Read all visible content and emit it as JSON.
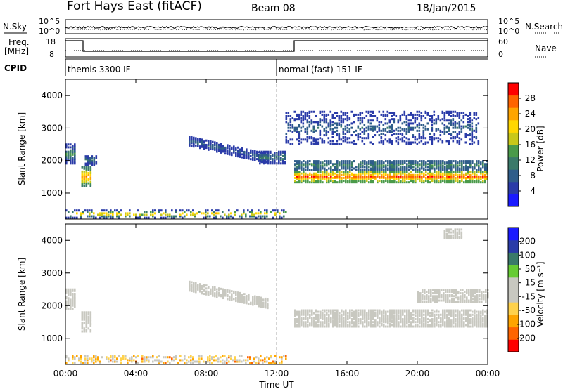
{
  "header": {
    "station": "Fort Hays East (fitACF)",
    "beam": "Beam 08",
    "date": "18/Jan/2015"
  },
  "left_labels": {
    "nsky": "N.Sky",
    "freq_line1": "Freq.",
    "freq_line2": "[MHz]",
    "cpid": "CPID"
  },
  "right_labels": {
    "nsearch": "N.Search",
    "nave": "Nave"
  },
  "noise_axis": {
    "left_ticks": [
      "10^5",
      "10^0"
    ],
    "right_ticks": [
      "10^5",
      "10^0"
    ]
  },
  "freq_axis": {
    "left_ticks": [
      "18",
      "8"
    ],
    "right_ticks": [
      "60",
      "0"
    ]
  },
  "cpid_modes": [
    {
      "label": "themis 3300 IF",
      "start": 0.0
    },
    {
      "label": "normal (fast) 151 IF",
      "start": 12.0
    }
  ],
  "colors": {
    "power_scale": [
      "#1a1aff",
      "#2a3ba8",
      "#2f5d8a",
      "#3a7a6a",
      "#4a9a4a",
      "#c8c819",
      "#ffd700",
      "#ffa500",
      "#ff6400",
      "#ff0000"
    ],
    "velocity_scale": [
      "#ff0000",
      "#ff6400",
      "#ffa500",
      "#ffd24c",
      "#c8c8c0",
      "#c8c8c0",
      "#66cc33",
      "#3a7a6a",
      "#2a3ba8",
      "#1a1aff"
    ],
    "noise_line": "#000000"
  },
  "chart_data": [
    {
      "type": "heatmap",
      "panel": "power",
      "xlabel": "Time UT",
      "ylabel": "Slant Range [km]",
      "x_tick_labels": [
        "00:00",
        "04:00",
        "08:00",
        "12:00",
        "16:00",
        "20:00",
        "00:00"
      ],
      "xlim_hours": [
        0,
        24
      ],
      "ylim_km": [
        200,
        4500
      ],
      "y_ticks": [
        1000,
        2000,
        3000,
        4000
      ],
      "colorbar_label": "Power [dB]",
      "colorbar_ticks": [
        "4",
        "8",
        "12",
        "16",
        "20",
        "24",
        "28"
      ],
      "colorbar_range": [
        0,
        30
      ],
      "echo_regions": [
        {
          "t_start": 0.0,
          "t_end": 0.6,
          "r_center": 2200,
          "r_halfwidth": 300,
          "level_min": 4,
          "level_max": 14
        },
        {
          "t_start": 0.9,
          "t_end": 1.5,
          "r_center": 1500,
          "r_halfwidth": 300,
          "level_min": 10,
          "level_max": 26
        },
        {
          "t_start": 1.1,
          "t_end": 1.8,
          "r_center": 2000,
          "r_halfwidth": 150,
          "level_min": 4,
          "level_max": 12
        },
        {
          "t_start": 7.0,
          "t_end": 11.5,
          "r_center": 2600,
          "r_halfwidth": 150,
          "level_min": 3,
          "level_max": 10,
          "slope_km_per_h": -120
        },
        {
          "t_start": 11.0,
          "t_end": 12.5,
          "r_center": 2100,
          "r_halfwidth": 200,
          "level_min": 4,
          "level_max": 12
        },
        {
          "t_start": 13.0,
          "t_end": 24.0,
          "r_center": 1500,
          "r_halfwidth": 180,
          "level_min": 12,
          "level_max": 28
        },
        {
          "t_start": 13.0,
          "t_end": 24.0,
          "r_center": 1850,
          "r_halfwidth": 150,
          "level_min": 6,
          "level_max": 14
        },
        {
          "t_start": 12.5,
          "t_end": 23.5,
          "r_center": 3000,
          "r_halfwidth": 500,
          "level_min": 3,
          "level_max": 10,
          "sparse": true
        },
        {
          "t_start": 0.0,
          "t_end": 12.5,
          "r_center": 350,
          "r_halfwidth": 120,
          "level_min": 3,
          "level_max": 24,
          "sparse": true
        }
      ]
    },
    {
      "type": "heatmap",
      "panel": "velocity",
      "xlabel": "Time UT",
      "ylabel": "Slant Range [km]",
      "x_tick_labels": [
        "00:00",
        "04:00",
        "08:00",
        "12:00",
        "16:00",
        "20:00",
        "00:00"
      ],
      "xlim_hours": [
        0,
        24
      ],
      "ylim_km": [
        200,
        4500
      ],
      "y_ticks": [
        1000,
        2000,
        3000,
        4000
      ],
      "colorbar_label": "Velocity [m s⁻¹]",
      "colorbar_ticks": [
        "-200",
        "-100",
        "-50",
        "-15",
        "15",
        "50",
        "100",
        "200"
      ],
      "colorbar_range": [
        -250,
        250
      ],
      "echo_regions": [
        {
          "t_start": 0.0,
          "t_end": 0.6,
          "r_center": 2200,
          "r_halfwidth": 300,
          "vel": 0
        },
        {
          "t_start": 0.9,
          "t_end": 1.5,
          "r_center": 1500,
          "r_halfwidth": 300,
          "vel": 0
        },
        {
          "t_start": 7.0,
          "t_end": 11.5,
          "r_center": 2600,
          "r_halfwidth": 150,
          "vel": 0,
          "slope_km_per_h": -120
        },
        {
          "t_start": 13.0,
          "t_end": 24.0,
          "r_center": 1600,
          "r_halfwidth": 250,
          "vel": 0
        },
        {
          "t_start": 20.0,
          "t_end": 24.0,
          "r_center": 2300,
          "r_halfwidth": 200,
          "vel": 0
        },
        {
          "t_start": 0.0,
          "t_end": 12.5,
          "r_center": 350,
          "r_halfwidth": 120,
          "vel": -60,
          "sparse": true
        },
        {
          "t_start": 21.5,
          "t_end": 22.5,
          "r_center": 4200,
          "r_halfwidth": 150,
          "vel": -30
        }
      ]
    }
  ]
}
